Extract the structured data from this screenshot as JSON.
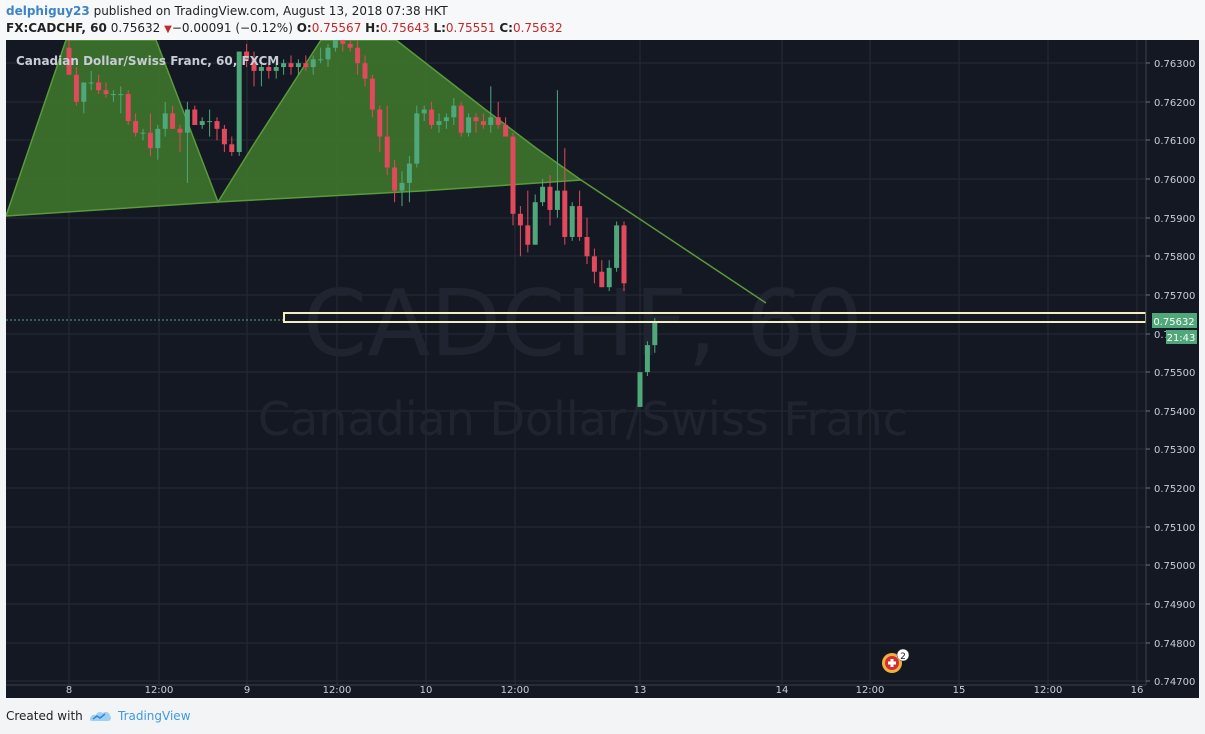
{
  "header": {
    "author": "delphiguy23",
    "published_text": "published on TradingView.com, August 13, 2018 07:38 HKT",
    "symbol": "FX:CADCHF, 60",
    "last_price": "0.75632",
    "change_arrow": "▼",
    "change": "−0.00091 (−0.12%)",
    "open_label": "O:",
    "open": "0.75567",
    "high_label": "H:",
    "high": "0.75643",
    "low_label": "L:",
    "low": "0.75551",
    "close_label": "C:",
    "close": "0.75632"
  },
  "chart": {
    "instrument_label": "Canadian Dollar/Swiss Franc, 60, FXCM",
    "watermark_symbol": "CADCHF, 60",
    "watermark_name": "Canadian Dollar/Swiss Franc",
    "price_badge": "0.75632",
    "timer_badge": "21:43",
    "event_count": "2",
    "colors": {
      "background": "#141823",
      "up": "#4fa77a",
      "down": "#e04a5c",
      "pattern_fill": "#3f7a2c",
      "highlight": "#f2f0c0",
      "badge": "#4fa77a"
    }
  },
  "chart_data": {
    "type": "candlestick",
    "y_ticks": [
      "0.76300",
      "0.76200",
      "0.76100",
      "0.76000",
      "0.75900",
      "0.75800",
      "0.75700",
      "0.75600",
      "0.75500",
      "0.75400",
      "0.75300",
      "0.75200",
      "0.75100",
      "0.75000",
      "0.74900",
      "0.74800",
      "0.74700"
    ],
    "ylim": [
      0.7469,
      0.7636
    ],
    "x_ticks": [
      "8",
      "12:00",
      "9",
      "12:00",
      "10",
      "12:00",
      "13",
      "14",
      "12:00",
      "15",
      "12:00",
      "16"
    ],
    "candles": [
      {
        "o": 0.7634,
        "h": 0.7638,
        "l": 0.7627,
        "c": 0.7627
      },
      {
        "o": 0.7627,
        "h": 0.7629,
        "l": 0.7619,
        "c": 0.762
      },
      {
        "o": 0.762,
        "h": 0.7625,
        "l": 0.7617,
        "c": 0.7625
      },
      {
        "o": 0.7625,
        "h": 0.7628,
        "l": 0.7623,
        "c": 0.7625
      },
      {
        "o": 0.7625,
        "h": 0.7627,
        "l": 0.7622,
        "c": 0.7623
      },
      {
        "o": 0.7623,
        "h": 0.7625,
        "l": 0.7621,
        "c": 0.7622
      },
      {
        "o": 0.7622,
        "h": 0.7623,
        "l": 0.762,
        "c": 0.7622
      },
      {
        "o": 0.7622,
        "h": 0.7624,
        "l": 0.7617,
        "c": 0.7622
      },
      {
        "o": 0.7622,
        "h": 0.7623,
        "l": 0.7614,
        "c": 0.7615
      },
      {
        "o": 0.7615,
        "h": 0.7617,
        "l": 0.7611,
        "c": 0.7612
      },
      {
        "o": 0.7612,
        "h": 0.7613,
        "l": 0.761,
        "c": 0.7612
      },
      {
        "o": 0.7612,
        "h": 0.7617,
        "l": 0.7606,
        "c": 0.7608
      },
      {
        "o": 0.7608,
        "h": 0.7614,
        "l": 0.7605,
        "c": 0.7613
      },
      {
        "o": 0.7613,
        "h": 0.762,
        "l": 0.7611,
        "c": 0.7617
      },
      {
        "o": 0.7617,
        "h": 0.7619,
        "l": 0.7613,
        "c": 0.7613
      },
      {
        "o": 0.7613,
        "h": 0.7614,
        "l": 0.7607,
        "c": 0.7612
      },
      {
        "o": 0.7612,
        "h": 0.762,
        "l": 0.7599,
        "c": 0.7618
      },
      {
        "o": 0.7618,
        "h": 0.7619,
        "l": 0.7614,
        "c": 0.7614
      },
      {
        "o": 0.7614,
        "h": 0.7616,
        "l": 0.7613,
        "c": 0.7615
      },
      {
        "o": 0.7615,
        "h": 0.7618,
        "l": 0.7611,
        "c": 0.7615
      },
      {
        "o": 0.7615,
        "h": 0.7616,
        "l": 0.761,
        "c": 0.7613
      },
      {
        "o": 0.7613,
        "h": 0.7614,
        "l": 0.7607,
        "c": 0.7609
      },
      {
        "o": 0.7609,
        "h": 0.7611,
        "l": 0.7606,
        "c": 0.7607
      },
      {
        "o": 0.7607,
        "h": 0.7633,
        "l": 0.7606,
        "c": 0.7633
      },
      {
        "o": 0.7633,
        "h": 0.7635,
        "l": 0.7629,
        "c": 0.7631
      },
      {
        "o": 0.7631,
        "h": 0.7633,
        "l": 0.7624,
        "c": 0.7628
      },
      {
        "o": 0.7628,
        "h": 0.763,
        "l": 0.7624,
        "c": 0.7629
      },
      {
        "o": 0.7629,
        "h": 0.763,
        "l": 0.7626,
        "c": 0.7628
      },
      {
        "o": 0.7628,
        "h": 0.763,
        "l": 0.7626,
        "c": 0.7629
      },
      {
        "o": 0.7629,
        "h": 0.7631,
        "l": 0.7627,
        "c": 0.763
      },
      {
        "o": 0.763,
        "h": 0.7632,
        "l": 0.7627,
        "c": 0.7629
      },
      {
        "o": 0.7629,
        "h": 0.7631,
        "l": 0.7627,
        "c": 0.763
      },
      {
        "o": 0.763,
        "h": 0.7632,
        "l": 0.7628,
        "c": 0.7629
      },
      {
        "o": 0.7629,
        "h": 0.7632,
        "l": 0.7627,
        "c": 0.7631
      },
      {
        "o": 0.7631,
        "h": 0.7634,
        "l": 0.763,
        "c": 0.7631
      },
      {
        "o": 0.7631,
        "h": 0.7635,
        "l": 0.7629,
        "c": 0.7634
      },
      {
        "o": 0.7634,
        "h": 0.7637,
        "l": 0.7633,
        "c": 0.7636
      },
      {
        "o": 0.7636,
        "h": 0.7637,
        "l": 0.7633,
        "c": 0.7635
      },
      {
        "o": 0.7635,
        "h": 0.7637,
        "l": 0.7633,
        "c": 0.7634
      },
      {
        "o": 0.7634,
        "h": 0.7638,
        "l": 0.7627,
        "c": 0.763
      },
      {
        "o": 0.763,
        "h": 0.7632,
        "l": 0.7624,
        "c": 0.7626
      },
      {
        "o": 0.7626,
        "h": 0.7627,
        "l": 0.7616,
        "c": 0.7618
      },
      {
        "o": 0.7618,
        "h": 0.7619,
        "l": 0.7607,
        "c": 0.7611
      },
      {
        "o": 0.7611,
        "h": 0.7619,
        "l": 0.7601,
        "c": 0.7603
      },
      {
        "o": 0.7603,
        "h": 0.7605,
        "l": 0.7594,
        "c": 0.7597
      },
      {
        "o": 0.7597,
        "h": 0.7602,
        "l": 0.7593,
        "c": 0.7599
      },
      {
        "o": 0.7599,
        "h": 0.7606,
        "l": 0.7594,
        "c": 0.7604
      },
      {
        "o": 0.7604,
        "h": 0.7619,
        "l": 0.7603,
        "c": 0.7617
      },
      {
        "o": 0.7617,
        "h": 0.7619,
        "l": 0.7615,
        "c": 0.7618
      },
      {
        "o": 0.7618,
        "h": 0.762,
        "l": 0.7613,
        "c": 0.7614
      },
      {
        "o": 0.7614,
        "h": 0.7617,
        "l": 0.7612,
        "c": 0.7615
      },
      {
        "o": 0.7615,
        "h": 0.7617,
        "l": 0.7613,
        "c": 0.7616
      },
      {
        "o": 0.7616,
        "h": 0.7621,
        "l": 0.7614,
        "c": 0.7619
      },
      {
        "o": 0.7619,
        "h": 0.762,
        "l": 0.7611,
        "c": 0.7612
      },
      {
        "o": 0.7612,
        "h": 0.7617,
        "l": 0.7611,
        "c": 0.7616
      },
      {
        "o": 0.7616,
        "h": 0.7617,
        "l": 0.7612,
        "c": 0.7615
      },
      {
        "o": 0.7615,
        "h": 0.7617,
        "l": 0.7613,
        "c": 0.7614
      },
      {
        "o": 0.7614,
        "h": 0.7624,
        "l": 0.7612,
        "c": 0.7616
      },
      {
        "o": 0.7616,
        "h": 0.762,
        "l": 0.7613,
        "c": 0.7614
      },
      {
        "o": 0.7614,
        "h": 0.7616,
        "l": 0.7611,
        "c": 0.7611
      },
      {
        "o": 0.7611,
        "h": 0.7612,
        "l": 0.7588,
        "c": 0.7591
      },
      {
        "o": 0.7591,
        "h": 0.7593,
        "l": 0.758,
        "c": 0.7588
      },
      {
        "o": 0.7588,
        "h": 0.7597,
        "l": 0.7581,
        "c": 0.7583
      },
      {
        "o": 0.7583,
        "h": 0.7596,
        "l": 0.7583,
        "c": 0.7594
      },
      {
        "o": 0.7594,
        "h": 0.76,
        "l": 0.7593,
        "c": 0.7598
      },
      {
        "o": 0.7598,
        "h": 0.7601,
        "l": 0.7588,
        "c": 0.7592
      },
      {
        "o": 0.7592,
        "h": 0.7623,
        "l": 0.759,
        "c": 0.7597
      },
      {
        "o": 0.7597,
        "h": 0.7608,
        "l": 0.7583,
        "c": 0.7585
      },
      {
        "o": 0.7585,
        "h": 0.7594,
        "l": 0.7584,
        "c": 0.7593
      },
      {
        "o": 0.7593,
        "h": 0.7597,
        "l": 0.7584,
        "c": 0.7585
      },
      {
        "o": 0.7585,
        "h": 0.759,
        "l": 0.7578,
        "c": 0.758
      },
      {
        "o": 0.758,
        "h": 0.7582,
        "l": 0.7573,
        "c": 0.7576
      },
      {
        "o": 0.7576,
        "h": 0.7579,
        "l": 0.7572,
        "c": 0.7572
      },
      {
        "o": 0.7572,
        "h": 0.7579,
        "l": 0.7571,
        "c": 0.7577
      },
      {
        "o": 0.7577,
        "h": 0.7589,
        "l": 0.7576,
        "c": 0.7588
      },
      {
        "o": 0.7588,
        "h": 0.7589,
        "l": 0.7571,
        "c": 0.7573
      },
      {
        "gap": true
      },
      {
        "o": 0.7541,
        "h": 0.755,
        "l": 0.7541,
        "c": 0.755
      },
      {
        "o": 0.755,
        "h": 0.7558,
        "l": 0.7549,
        "c": 0.7557
      },
      {
        "o": 0.7557,
        "h": 0.7564,
        "l": 0.7555,
        "c": 0.7563
      }
    ],
    "pattern": "head-and-shoulders",
    "highlight_level": 0.75632
  },
  "footer": {
    "created_with": "Created with",
    "brand": "TradingView"
  }
}
